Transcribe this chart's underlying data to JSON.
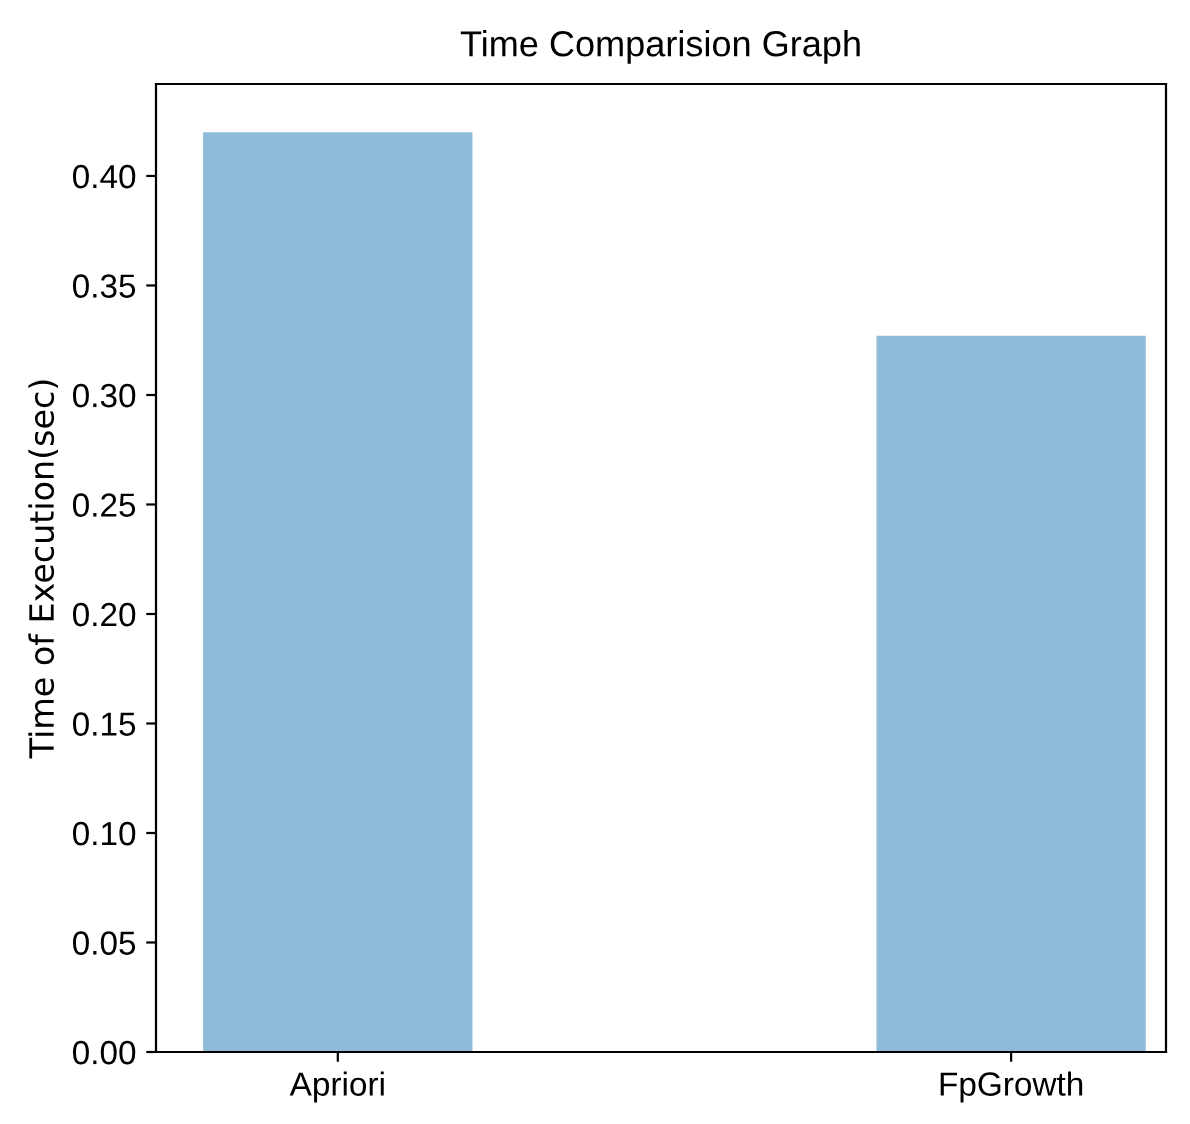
{
  "chart_data": {
    "type": "bar",
    "title": "Time Comparision Graph",
    "ylabel": "Time of Execution(sec)",
    "categories": [
      "Apriori",
      "FpGrowth"
    ],
    "values": [
      0.42,
      0.327
    ],
    "color": "#8fbbd9",
    "ylim": [
      0,
      0.442
    ],
    "yticks": [
      {
        "value": 0,
        "label": "0.00"
      },
      0.05,
      {
        "value": 0.1,
        "label": "0.10"
      },
      0.15,
      {
        "value": 0.2,
        "label": "0.20"
      },
      0.25,
      {
        "value": 0.3,
        "label": "0.30"
      },
      0.35,
      {
        "value": 0.4,
        "label": "0.40"
      }
    ],
    "grid": false
  }
}
